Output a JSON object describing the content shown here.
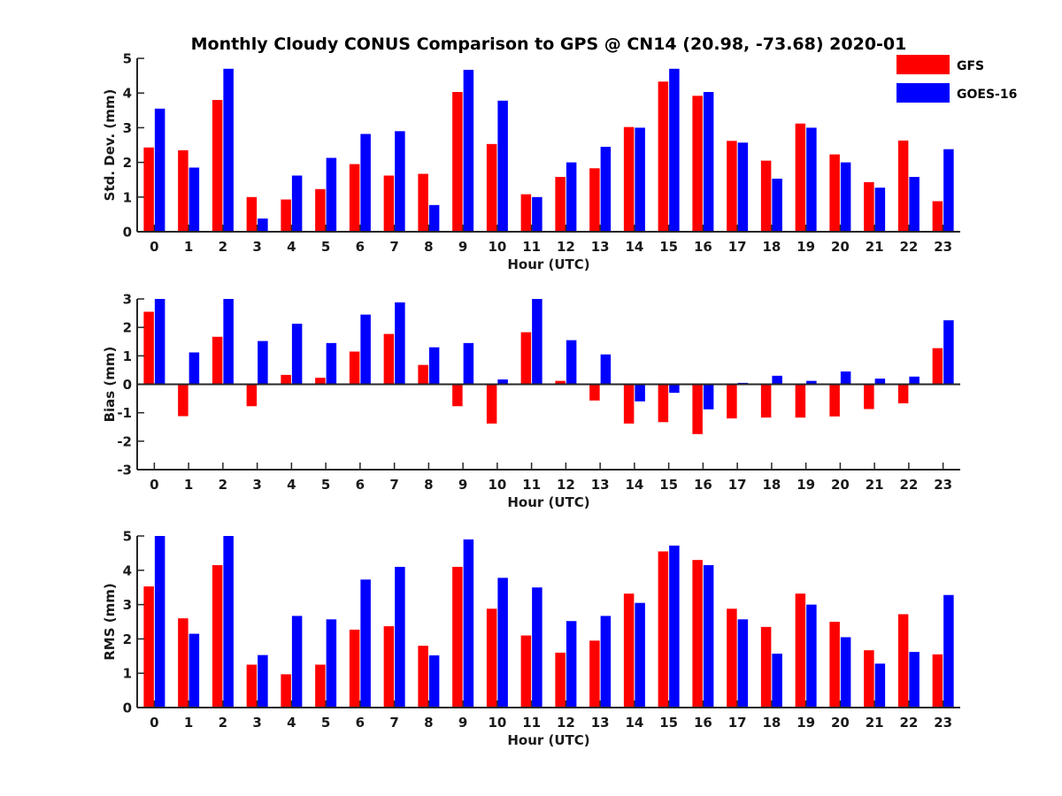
{
  "chart_data": {
    "title": "Monthly Cloudy CONUS Comparison to GPS @ CN14 (20.98, -73.68) 2020-01",
    "legend": {
      "position": "top-right",
      "entries": [
        {
          "name": "GFS",
          "color": "#ff0000"
        },
        {
          "name": "GOES-16",
          "color": "#0000ff"
        }
      ]
    },
    "panels": [
      {
        "type": "bar",
        "ylabel": "Std. Dev. (mm)",
        "xlabel": "Hour (UTC)",
        "ylim": [
          0,
          5
        ],
        "yticks": [
          0,
          1,
          2,
          3,
          4,
          5
        ],
        "categories": [
          "0",
          "1",
          "2",
          "3",
          "4",
          "5",
          "6",
          "7",
          "8",
          "9",
          "10",
          "11",
          "12",
          "13",
          "14",
          "15",
          "16",
          "17",
          "18",
          "19",
          "20",
          "21",
          "22",
          "23"
        ],
        "series": [
          {
            "name": "GFS",
            "values": [
              2.43,
              2.35,
              3.8,
              1.0,
              0.93,
              1.23,
              1.95,
              1.62,
              1.67,
              4.03,
              2.53,
              1.08,
              1.58,
              1.83,
              3.02,
              4.33,
              3.92,
              2.62,
              2.05,
              3.12,
              2.23,
              1.43,
              2.63,
              0.88
            ]
          },
          {
            "name": "GOES-16",
            "values": [
              3.55,
              1.85,
              4.7,
              0.38,
              1.62,
              2.13,
              2.82,
              2.9,
              0.77,
              4.67,
              3.78,
              1.0,
              2.0,
              2.45,
              3.0,
              4.7,
              4.03,
              2.57,
              1.53,
              3.0,
              2.0,
              1.27,
              1.58,
              2.38
            ]
          }
        ]
      },
      {
        "type": "bar",
        "ylabel": "Bias (mm)",
        "xlabel": "Hour (UTC)",
        "ylim": [
          -3,
          3
        ],
        "yticks": [
          -3,
          -2,
          -1,
          0,
          1,
          2,
          3
        ],
        "categories": [
          "0",
          "1",
          "2",
          "3",
          "4",
          "5",
          "6",
          "7",
          "8",
          "9",
          "10",
          "11",
          "12",
          "13",
          "14",
          "15",
          "16",
          "17",
          "18",
          "19",
          "20",
          "21",
          "22",
          "23"
        ],
        "series": [
          {
            "name": "GFS",
            "values": [
              2.55,
              -1.12,
              1.67,
              -0.77,
              0.33,
              0.23,
              1.15,
              1.77,
              0.68,
              -0.77,
              -1.38,
              1.83,
              0.12,
              -0.57,
              -1.38,
              -1.33,
              -1.75,
              -1.2,
              -1.17,
              -1.17,
              -1.13,
              -0.87,
              -0.67,
              1.27
            ]
          },
          {
            "name": "GOES-16",
            "values": [
              3.0,
              1.12,
              3.0,
              1.52,
              2.13,
              1.45,
              2.45,
              2.88,
              1.3,
              1.45,
              0.17,
              3.0,
              1.55,
              1.05,
              -0.6,
              -0.3,
              -0.88,
              0.05,
              0.3,
              0.12,
              0.45,
              0.2,
              0.27,
              2.25
            ]
          }
        ]
      },
      {
        "type": "bar",
        "ylabel": "RMS (mm)",
        "xlabel": "Hour (UTC)",
        "ylim": [
          0,
          5
        ],
        "yticks": [
          0,
          1,
          2,
          3,
          4,
          5
        ],
        "categories": [
          "0",
          "1",
          "2",
          "3",
          "4",
          "5",
          "6",
          "7",
          "8",
          "9",
          "10",
          "11",
          "12",
          "13",
          "14",
          "15",
          "16",
          "17",
          "18",
          "19",
          "20",
          "21",
          "22",
          "23"
        ],
        "series": [
          {
            "name": "GFS",
            "values": [
              3.53,
              2.6,
              4.15,
              1.25,
              0.97,
              1.25,
              2.27,
              2.37,
              1.8,
              4.1,
              2.88,
              2.1,
              1.6,
              1.95,
              3.32,
              4.55,
              4.3,
              2.88,
              2.35,
              3.32,
              2.5,
              1.67,
              2.72,
              1.55
            ]
          },
          {
            "name": "GOES-16",
            "values": [
              5.0,
              2.15,
              5.0,
              1.53,
              2.67,
              2.57,
              3.73,
              4.1,
              1.52,
              4.9,
              3.78,
              3.5,
              2.52,
              2.67,
              3.05,
              4.72,
              4.15,
              2.57,
              1.57,
              3.0,
              2.05,
              1.28,
              1.62,
              3.28
            ]
          }
        ]
      }
    ]
  }
}
